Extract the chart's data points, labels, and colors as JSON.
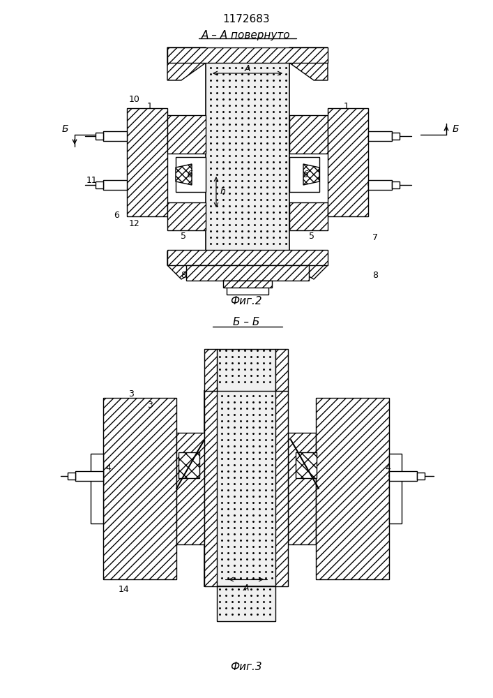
{
  "title": "1172683",
  "fig2_label": "А – А повернуто",
  "fig2_caption": "Фиг.2",
  "fig3_label": "Б – Б",
  "fig3_caption": "Фиг.3",
  "bg_color": "#ffffff"
}
